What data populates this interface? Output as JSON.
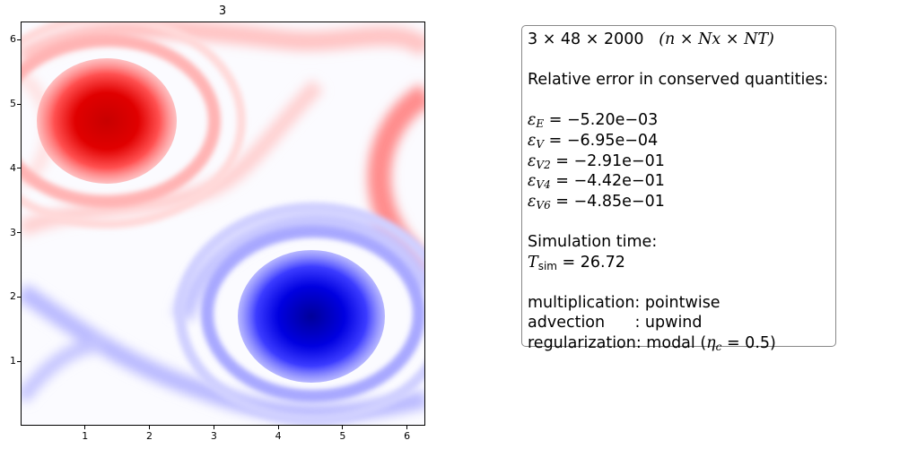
{
  "chart_data": {
    "type": "heatmap",
    "title": "3",
    "xlabel": "",
    "ylabel": "",
    "xlim": [
      0,
      6.283
    ],
    "ylim": [
      0,
      6.283
    ],
    "xticks": [
      "1",
      "2",
      "3",
      "4",
      "5",
      "6"
    ],
    "yticks": [
      "1",
      "2",
      "3",
      "4",
      "5",
      "6"
    ],
    "colormap": "bwr",
    "features": [
      {
        "kind": "positive vortex (red)",
        "x": 1.5,
        "y": 4.7
      },
      {
        "kind": "negative vortex (blue)",
        "x": 4.55,
        "y": 1.6
      }
    ],
    "grid": false
  },
  "info": {
    "resolution": "3 × 48 × 2000",
    "resolution_legend": "(n × Nx × NT)",
    "heading": "Relative error in conserved quantities:",
    "errors": [
      {
        "symbol": "ε",
        "sub": "E",
        "value": "−5.20e−03"
      },
      {
        "symbol": "ε",
        "sub": "V",
        "value": "−6.95e−04"
      },
      {
        "symbol": "ε",
        "sub": "V2",
        "value": "−2.91e−01"
      },
      {
        "symbol": "ε",
        "sub": "V4",
        "value": "−4.42e−01"
      },
      {
        "symbol": "ε",
        "sub": "V6",
        "value": "−4.85e−01"
      }
    ],
    "sim_time_label": "Simulation time:",
    "sim_time_symbol": "T",
    "sim_time_sub": "sim",
    "sim_time_value": "26.72",
    "multiplication": "multiplication: pointwise",
    "advection": "advection      : upwind",
    "regularization_prefix": "regularization: modal (",
    "regularization_param": "η",
    "regularization_param_sub": "c",
    "regularization_value": " = 0.5)"
  },
  "colors": {
    "positive": "#cc0000",
    "negative": "#0000cc",
    "zero": "#ffffff",
    "box_border": "#888888"
  }
}
